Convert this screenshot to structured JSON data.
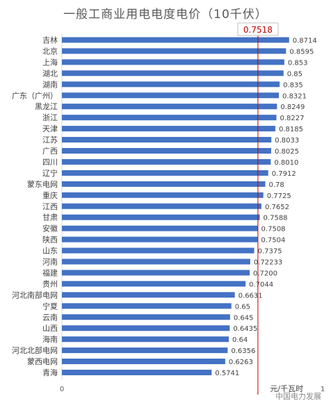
{
  "chart_data": {
    "type": "bar",
    "orientation": "horizontal",
    "title": "一般工商业用电电度电价（10千伏）",
    "unit_label": "元/千瓦时",
    "xlim": [
      0,
      1
    ],
    "x_ticks": [
      "0",
      "1"
    ],
    "reference_line": {
      "value": 0.7518,
      "label": "0.7518",
      "color": "#c00000"
    },
    "bar_color": "#4472c4",
    "grid": false,
    "legend": "none",
    "categories": [
      "吉林",
      "北京",
      "上海",
      "湖北",
      "湖南",
      "广东（广州）",
      "黑龙江",
      "浙江",
      "天津",
      "江苏",
      "广西",
      "四川",
      "辽宁",
      "蒙东电网",
      "重庆",
      "江西",
      "甘肃",
      "安徽",
      "陕西",
      "山东",
      "河南",
      "福建",
      "贵州",
      "河北南部电网",
      "宁夏",
      "云南",
      "山西",
      "海南",
      "河北北部电网",
      "蒙西电网",
      "青海"
    ],
    "values": [
      0.8714,
      0.8595,
      0.853,
      0.85,
      0.835,
      0.8321,
      0.8249,
      0.8227,
      0.8185,
      0.8033,
      0.8025,
      0.801,
      0.7912,
      0.78,
      0.7725,
      0.7652,
      0.7588,
      0.7508,
      0.7504,
      0.7375,
      0.72233,
      0.72,
      0.7044,
      0.6631,
      0.65,
      0.645,
      0.6435,
      0.64,
      0.6356,
      0.6263,
      0.5741
    ],
    "value_labels": [
      "0.8714",
      "0.8595",
      "0.853",
      "0.85",
      "0.835",
      "0.8321",
      "0.8249",
      "0.8227",
      "0.8185",
      "0.8033",
      "0.8025",
      "0.8010",
      "0.7912",
      "0.78",
      "0.7725",
      "0.7652",
      "0.7588",
      "0.7508",
      "0.7504",
      "0.7375",
      "0.72233",
      "0.7200",
      "0.7044",
      "0.6631",
      "0.65",
      "0.645",
      "0.6435",
      "0.64",
      "0.6356",
      "0.6263",
      "0.5741"
    ]
  },
  "watermark": "中国电力发展"
}
